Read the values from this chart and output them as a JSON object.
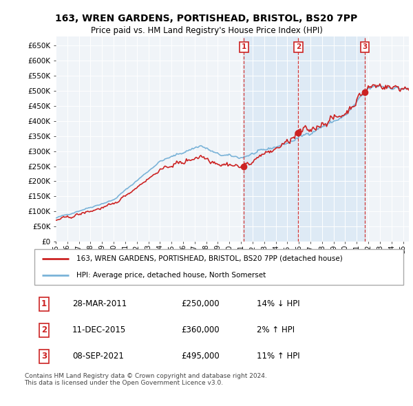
{
  "title": "163, WREN GARDENS, PORTISHEAD, BRISTOL, BS20 7PP",
  "subtitle": "Price paid vs. HM Land Registry's House Price Index (HPI)",
  "hpi_color": "#7ab3d8",
  "price_color": "#cc2222",
  "shade_color": "#deeaf5",
  "background_color": "#f0f4f8",
  "ylim": [
    0,
    680000
  ],
  "yticks": [
    0,
    50000,
    100000,
    150000,
    200000,
    250000,
    300000,
    350000,
    400000,
    450000,
    500000,
    550000,
    600000,
    650000
  ],
  "ytick_labels": [
    "£0",
    "£50K",
    "£100K",
    "£150K",
    "£200K",
    "£250K",
    "£300K",
    "£350K",
    "£400K",
    "£450K",
    "£500K",
    "£550K",
    "£600K",
    "£650K"
  ],
  "legend_label_red": "163, WREN GARDENS, PORTISHEAD, BRISTOL, BS20 7PP (detached house)",
  "legend_label_blue": "HPI: Average price, detached house, North Somerset",
  "transactions": [
    {
      "num": 1,
      "date": "28-MAR-2011",
      "price": "£250,000",
      "hpi": "14% ↓ HPI",
      "x_year": 2011.25
    },
    {
      "num": 2,
      "date": "11-DEC-2015",
      "price": "£360,000",
      "hpi": "2% ↑ HPI",
      "x_year": 2015.95
    },
    {
      "num": 3,
      "date": "08-SEP-2021",
      "price": "£495,000",
      "hpi": "11% ↑ HPI",
      "x_year": 2021.69
    }
  ],
  "transaction_values": [
    250000,
    360000,
    495000
  ],
  "footer": "Contains HM Land Registry data © Crown copyright and database right 2024.\nThis data is licensed under the Open Government Licence v3.0.",
  "xlim_start": 1995.0,
  "xlim_end": 2025.5
}
